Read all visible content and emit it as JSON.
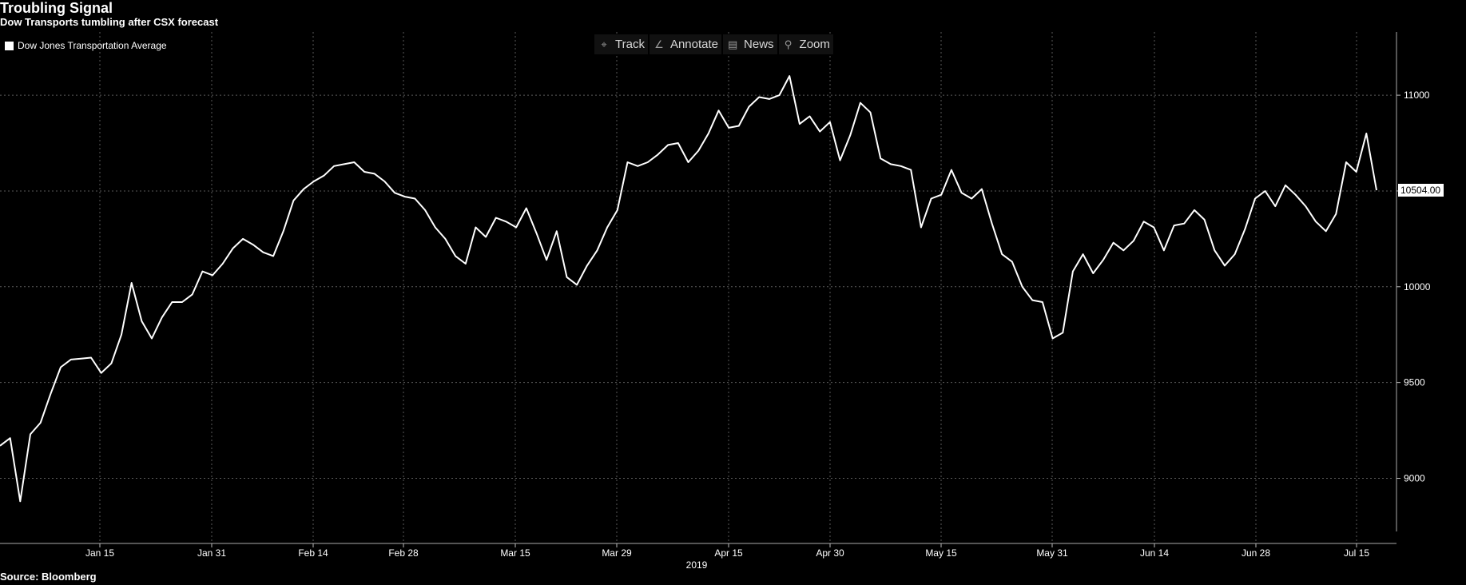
{
  "header": {
    "title": "Troubling Signal",
    "subtitle": "Dow Transports tumbling after CSX forecast"
  },
  "legend": {
    "label": "Dow Jones Transportation Average",
    "color": "#ffffff"
  },
  "toolbar": [
    {
      "icon": "crosshair-icon",
      "glyph": "⌖",
      "label": "Track"
    },
    {
      "icon": "pencil-icon",
      "glyph": "∠",
      "label": "Annotate"
    },
    {
      "icon": "news-icon",
      "glyph": "▤",
      "label": "News"
    },
    {
      "icon": "zoom-icon",
      "glyph": "⚲",
      "label": "Zoom"
    }
  ],
  "footer": {
    "source": "Source: Bloomberg"
  },
  "chart_data": {
    "type": "line",
    "year_label": "2019",
    "x_tick_labels": [
      "Jan 15",
      "Jan 31",
      "Feb 14",
      "Feb 28",
      "Mar 15",
      "Mar 29",
      "Apr 15",
      "Apr 30",
      "May 15",
      "May 31",
      "Jun 14",
      "Jun 28",
      "Jul 15"
    ],
    "y_ticks": [
      9000,
      9500,
      10000,
      10500,
      11000
    ],
    "ylim": [
      8660,
      11330
    ],
    "last_value": 10504,
    "last_value_label": "10504.00",
    "grid": true,
    "series": [
      {
        "name": "Dow Jones Transportation Average",
        "values": [
          9170,
          9210,
          8880,
          9230,
          9290,
          9440,
          9580,
          9620,
          9625,
          9630,
          9550,
          9600,
          9750,
          10020,
          9820,
          9730,
          9840,
          9920,
          9920,
          9960,
          10080,
          10060,
          10120,
          10200,
          10250,
          10220,
          10180,
          10160,
          10290,
          10450,
          10510,
          10550,
          10580,
          10630,
          10640,
          10650,
          10600,
          10590,
          10550,
          10490,
          10470,
          10460,
          10400,
          10310,
          10250,
          10160,
          10120,
          10310,
          10260,
          10360,
          10340,
          10310,
          10410,
          10280,
          10140,
          10290,
          10050,
          10010,
          10110,
          10190,
          10310,
          10400,
          10650,
          10630,
          10650,
          10690,
          10740,
          10750,
          10650,
          10710,
          10800,
          10920,
          10830,
          10840,
          10940,
          10990,
          10980,
          11000,
          11100,
          10850,
          10890,
          10810,
          10860,
          10660,
          10790,
          10960,
          10910,
          10670,
          10640,
          10630,
          10610,
          10310,
          10460,
          10480,
          10610,
          10490,
          10460,
          10510,
          10330,
          10170,
          10130,
          10000,
          9930,
          9920,
          9730,
          9760,
          10080,
          10170,
          10070,
          10140,
          10230,
          10190,
          10240,
          10340,
          10310,
          10190,
          10320,
          10330,
          10400,
          10350,
          10190,
          10110,
          10170,
          10300,
          10460,
          10500,
          10420,
          10530,
          10480,
          10420,
          10340,
          10290,
          10380,
          10650,
          10600,
          10800,
          10504
        ]
      }
    ]
  }
}
